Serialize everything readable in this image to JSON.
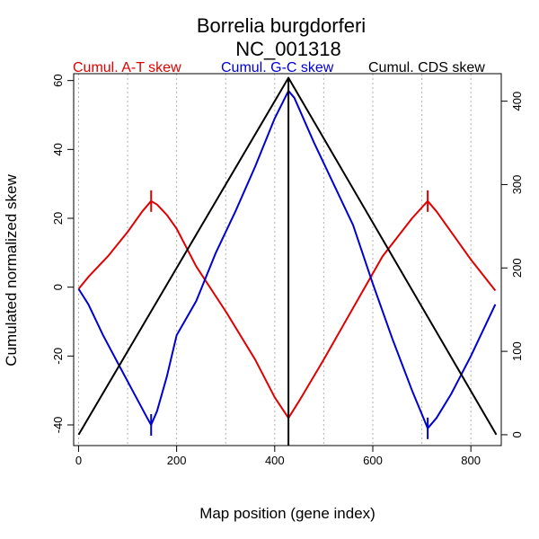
{
  "chart_data": {
    "type": "line",
    "title": "Borrelia burgdorferi",
    "subtitle": "NC_001318",
    "xlabel": "Map position (gene index)",
    "ylabel": "Cumulated normalized skew",
    "xlim": [
      -10,
      862
    ],
    "ylim": [
      -46,
      62
    ],
    "y2lim": [
      -13,
      433
    ],
    "x_ticks": [
      "0",
      "200",
      "400",
      "600",
      "800"
    ],
    "y_ticks": [
      "-40",
      "-20",
      "0",
      "20",
      "40",
      "60"
    ],
    "y2_ticks": [
      "0",
      "100",
      "200",
      "300",
      "400"
    ],
    "gridlines_x": [
      0,
      100,
      200,
      300,
      400,
      500,
      600,
      700,
      800
    ],
    "legend": [
      "Cumul. A-T skew",
      "Cumul. G-C skew",
      "Cumul. CDS skew"
    ],
    "colors": {
      "at": "#e00000",
      "gc": "#0000d0",
      "cds": "#000000",
      "grid": "#b0b0b0"
    },
    "series": [
      {
        "name": "Cumul. A-T skew",
        "axis": "left",
        "x": [
          0,
          20,
          60,
          100,
          130,
          148,
          160,
          180,
          200,
          240,
          300,
          360,
          400,
          428,
          450,
          500,
          560,
          620,
          680,
          712,
          730,
          760,
          800,
          850
        ],
        "y": [
          -0.5,
          3,
          9,
          16,
          22,
          25,
          24,
          21,
          17,
          6,
          -7,
          -21,
          -32,
          -38,
          -33,
          -21,
          -6,
          9,
          20,
          25,
          22,
          16,
          8,
          -1
        ]
      },
      {
        "name": "Cumul. G-C skew",
        "axis": "left",
        "x": [
          0,
          20,
          50,
          80,
          110,
          140,
          148,
          160,
          180,
          200,
          240,
          280,
          320,
          360,
          400,
          428,
          440,
          480,
          520,
          560,
          600,
          640,
          680,
          712,
          730,
          760,
          800,
          850
        ],
        "y": [
          -0.5,
          -5,
          -14,
          -22,
          -30,
          -38,
          -40,
          -36,
          -26,
          -14,
          -4,
          10,
          22,
          35,
          49,
          57,
          55,
          42,
          30,
          18,
          1,
          -15,
          -30,
          -41,
          -38,
          -31,
          -20,
          -5
        ]
      },
      {
        "name": "Cumul. CDS skew",
        "axis": "right",
        "x": [
          0,
          428,
          852
        ],
        "y": [
          0,
          428,
          0
        ]
      }
    ],
    "origin_line_x": 428,
    "origin_line_at_x": 428,
    "terminus_marks": [
      {
        "series": "Cumul. A-T skew",
        "x": 148,
        "y": 25
      },
      {
        "series": "Cumul. G-C skew",
        "x": 148,
        "y": -40
      },
      {
        "series": "Cumul. A-T skew",
        "x": 712,
        "y": 25
      },
      {
        "series": "Cumul. G-C skew",
        "x": 712,
        "y": -41
      }
    ]
  }
}
